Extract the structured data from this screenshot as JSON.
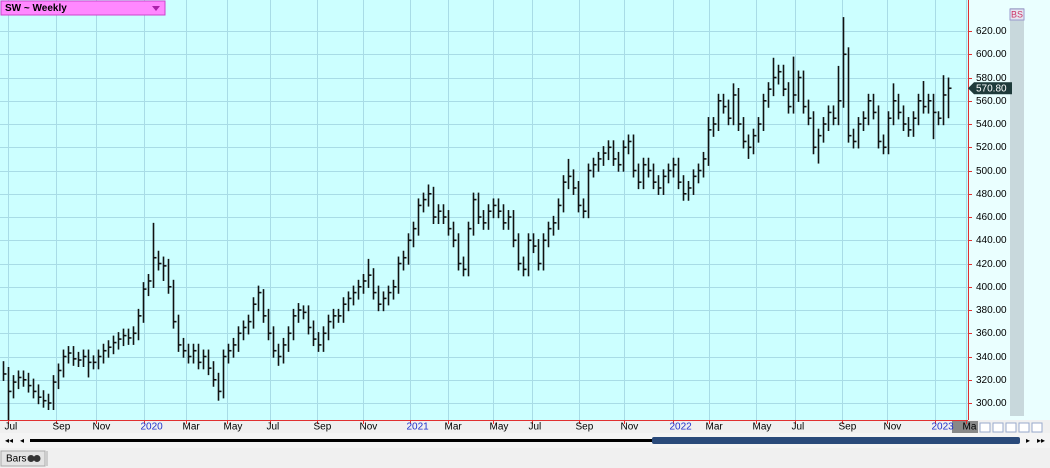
{
  "chart_data": {
    "type": "ohlc",
    "title": "SW ~ Weekly",
    "xlim": [
      -0.6,
      193
    ],
    "xticks": [
      {
        "value": 1,
        "label": "Jul"
      },
      {
        "value": 10.6,
        "label": "Sep"
      },
      {
        "value": 18.6,
        "label": "Nov"
      },
      {
        "value": 28.2,
        "label": "2020"
      },
      {
        "value": 36.6,
        "label": "Mar"
      },
      {
        "value": 44.8,
        "label": "May"
      },
      {
        "value": 53.4,
        "label": "Jul"
      },
      {
        "value": 62.8,
        "label": "Sep"
      },
      {
        "value": 72,
        "label": "Nov"
      },
      {
        "value": 81.4,
        "label": "2021"
      },
      {
        "value": 89,
        "label": "Mar"
      },
      {
        "value": 98,
        "label": "May"
      },
      {
        "value": 105.8,
        "label": "Jul"
      },
      {
        "value": 115.2,
        "label": "Sep"
      },
      {
        "value": 124.2,
        "label": "Nov"
      },
      {
        "value": 134,
        "label": "2022"
      },
      {
        "value": 141.2,
        "label": "Mar"
      },
      {
        "value": 150.6,
        "label": "May"
      },
      {
        "value": 158.4,
        "label": "Jul"
      },
      {
        "value": 167.8,
        "label": "Sep"
      },
      {
        "value": 176.8,
        "label": "Nov"
      },
      {
        "value": 186.4,
        "label": "2023"
      },
      {
        "value": 192.6,
        "label": "Ma"
      }
    ],
    "ylim": [
      285.4,
      646.7
    ],
    "yticks": [
      {
        "value": 300,
        "label": "300.00"
      },
      {
        "value": 320,
        "label": "320.00"
      },
      {
        "value": 340,
        "label": "340.00"
      },
      {
        "value": 360,
        "label": "360.00"
      },
      {
        "value": 380,
        "label": "380.00"
      },
      {
        "value": 400,
        "label": "400.00"
      },
      {
        "value": 420,
        "label": "420.00"
      },
      {
        "value": 440,
        "label": "440.00"
      },
      {
        "value": 460,
        "label": "460.00"
      },
      {
        "value": 480,
        "label": "480.00"
      },
      {
        "value": 500,
        "label": "500.00"
      },
      {
        "value": 520,
        "label": "520.00"
      },
      {
        "value": 540,
        "label": "540.00"
      },
      {
        "value": 560,
        "label": "560.00"
      },
      {
        "value": 580,
        "label": "580.00"
      },
      {
        "value": 600,
        "label": "600.00"
      },
      {
        "value": 620,
        "label": "620.00"
      }
    ],
    "grid": true,
    "color": "#111111",
    "high": [
      336,
      331,
      324,
      328,
      328,
      326,
      321,
      316,
      311,
      308,
      324,
      334,
      346,
      349,
      349,
      344,
      346,
      346,
      341,
      346,
      351,
      354,
      358,
      361,
      364,
      364,
      366,
      381,
      404,
      411,
      455,
      431,
      426,
      424,
      406,
      376,
      356,
      351,
      351,
      351,
      346,
      346,
      336,
      326,
      346,
      351,
      356,
      366,
      371,
      376,
      391,
      401,
      398,
      381,
      366,
      351,
      356,
      366,
      381,
      386,
      384,
      384,
      371,
      361,
      366,
      376,
      381,
      381,
      391,
      396,
      401,
      406,
      411,
      424,
      416,
      401,
      396,
      401,
      406,
      426,
      431,
      446,
      456,
      476,
      481,
      488,
      486,
      471,
      471,
      466,
      456,
      446,
      426,
      456,
      481,
      481,
      466,
      471,
      476,
      476,
      471,
      466,
      466,
      446,
      426,
      446,
      446,
      441,
      446,
      456,
      461,
      476,
      496,
      510,
      501,
      491,
      476,
      506,
      511,
      516,
      521,
      526,
      526,
      516,
      526,
      531,
      531,
      506,
      511,
      511,
      506,
      496,
      501,
      506,
      511,
      511,
      496,
      491,
      501,
      506,
      516,
      546,
      546,
      566,
      566,
      561,
      575,
      571,
      546,
      531,
      536,
      546,
      566,
      576,
      597,
      591,
      591,
      576,
      598,
      586,
      586,
      561,
      551,
      536,
      546,
      556,
      556,
      590,
      632,
      606,
      536,
      546,
      551,
      566,
      566,
      556,
      531,
      551,
      575,
      566,
      556,
      546,
      551,
      566,
      577,
      566,
      566,
      551,
      582,
      580
    ],
    "low": [
      319,
      285,
      304,
      312,
      314,
      309,
      304,
      299,
      296,
      294,
      294,
      312,
      322,
      334,
      332,
      331,
      331,
      322,
      329,
      329,
      334,
      339,
      342,
      346,
      349,
      350,
      350,
      354,
      369,
      392,
      399,
      414,
      405,
      394,
      364,
      344,
      339,
      334,
      334,
      329,
      329,
      324,
      314,
      302,
      304,
      334,
      339,
      344,
      354,
      359,
      364,
      379,
      369,
      354,
      339,
      332,
      334,
      344,
      354,
      369,
      372,
      359,
      349,
      344,
      344,
      354,
      364,
      369,
      369,
      379,
      384,
      389,
      394,
      399,
      389,
      379,
      379,
      384,
      389,
      394,
      414,
      419,
      434,
      444,
      464,
      469,
      454,
      454,
      454,
      444,
      434,
      414,
      409,
      409,
      444,
      454,
      449,
      449,
      459,
      459,
      449,
      449,
      434,
      414,
      409,
      409,
      429,
      414,
      414,
      434,
      444,
      449,
      464,
      484,
      479,
      464,
      459,
      459,
      494,
      499,
      504,
      509,
      504,
      499,
      499,
      514,
      494,
      484,
      484,
      494,
      484,
      479,
      479,
      489,
      494,
      484,
      474,
      474,
      479,
      489,
      494,
      504,
      529,
      534,
      549,
      539,
      539,
      534,
      519,
      510,
      514,
      524,
      534,
      554,
      564,
      574,
      564,
      549,
      549,
      559,
      549,
      539,
      514,
      506,
      524,
      534,
      539,
      539,
      554,
      524,
      519,
      519,
      534,
      539,
      544,
      519,
      514,
      514,
      539,
      544,
      534,
      529,
      529,
      539,
      549,
      549,
      527,
      539,
      539,
      545
    ],
    "close": [
      325,
      310,
      318,
      322,
      320,
      315,
      310,
      305,
      302,
      300,
      318,
      328,
      340,
      343,
      338,
      337,
      340,
      335,
      335,
      340,
      345,
      348,
      352,
      355,
      358,
      356,
      360,
      375,
      398,
      405,
      425,
      420,
      418,
      400,
      370,
      350,
      345,
      340,
      345,
      335,
      340,
      330,
      320,
      310,
      340,
      345,
      350,
      360,
      365,
      370,
      385,
      395,
      375,
      360,
      345,
      340,
      350,
      360,
      375,
      380,
      378,
      365,
      355,
      350,
      360,
      370,
      375,
      375,
      385,
      390,
      395,
      400,
      405,
      410,
      395,
      385,
      390,
      395,
      400,
      420,
      425,
      440,
      450,
      470,
      475,
      480,
      460,
      465,
      460,
      450,
      440,
      420,
      415,
      450,
      475,
      460,
      455,
      465,
      470,
      465,
      455,
      460,
      440,
      420,
      415,
      440,
      435,
      420,
      440,
      450,
      455,
      470,
      490,
      495,
      485,
      470,
      465,
      500,
      505,
      510,
      515,
      520,
      510,
      505,
      520,
      525,
      500,
      490,
      505,
      500,
      490,
      485,
      495,
      500,
      505,
      490,
      480,
      485,
      495,
      500,
      510,
      535,
      540,
      560,
      555,
      545,
      565,
      540,
      525,
      520,
      530,
      540,
      560,
      570,
      580,
      585,
      570,
      555,
      565,
      580,
      555,
      545,
      520,
      530,
      540,
      550,
      545,
      560,
      600,
      530,
      525,
      540,
      545,
      560,
      550,
      525,
      520,
      545,
      560,
      550,
      540,
      535,
      545,
      560,
      555,
      560,
      550,
      545,
      565,
      570.8
    ],
    "last_price": {
      "value": 570.8,
      "label": "570.80"
    }
  },
  "ui": {
    "badge": "BS",
    "tab": "Bars"
  }
}
